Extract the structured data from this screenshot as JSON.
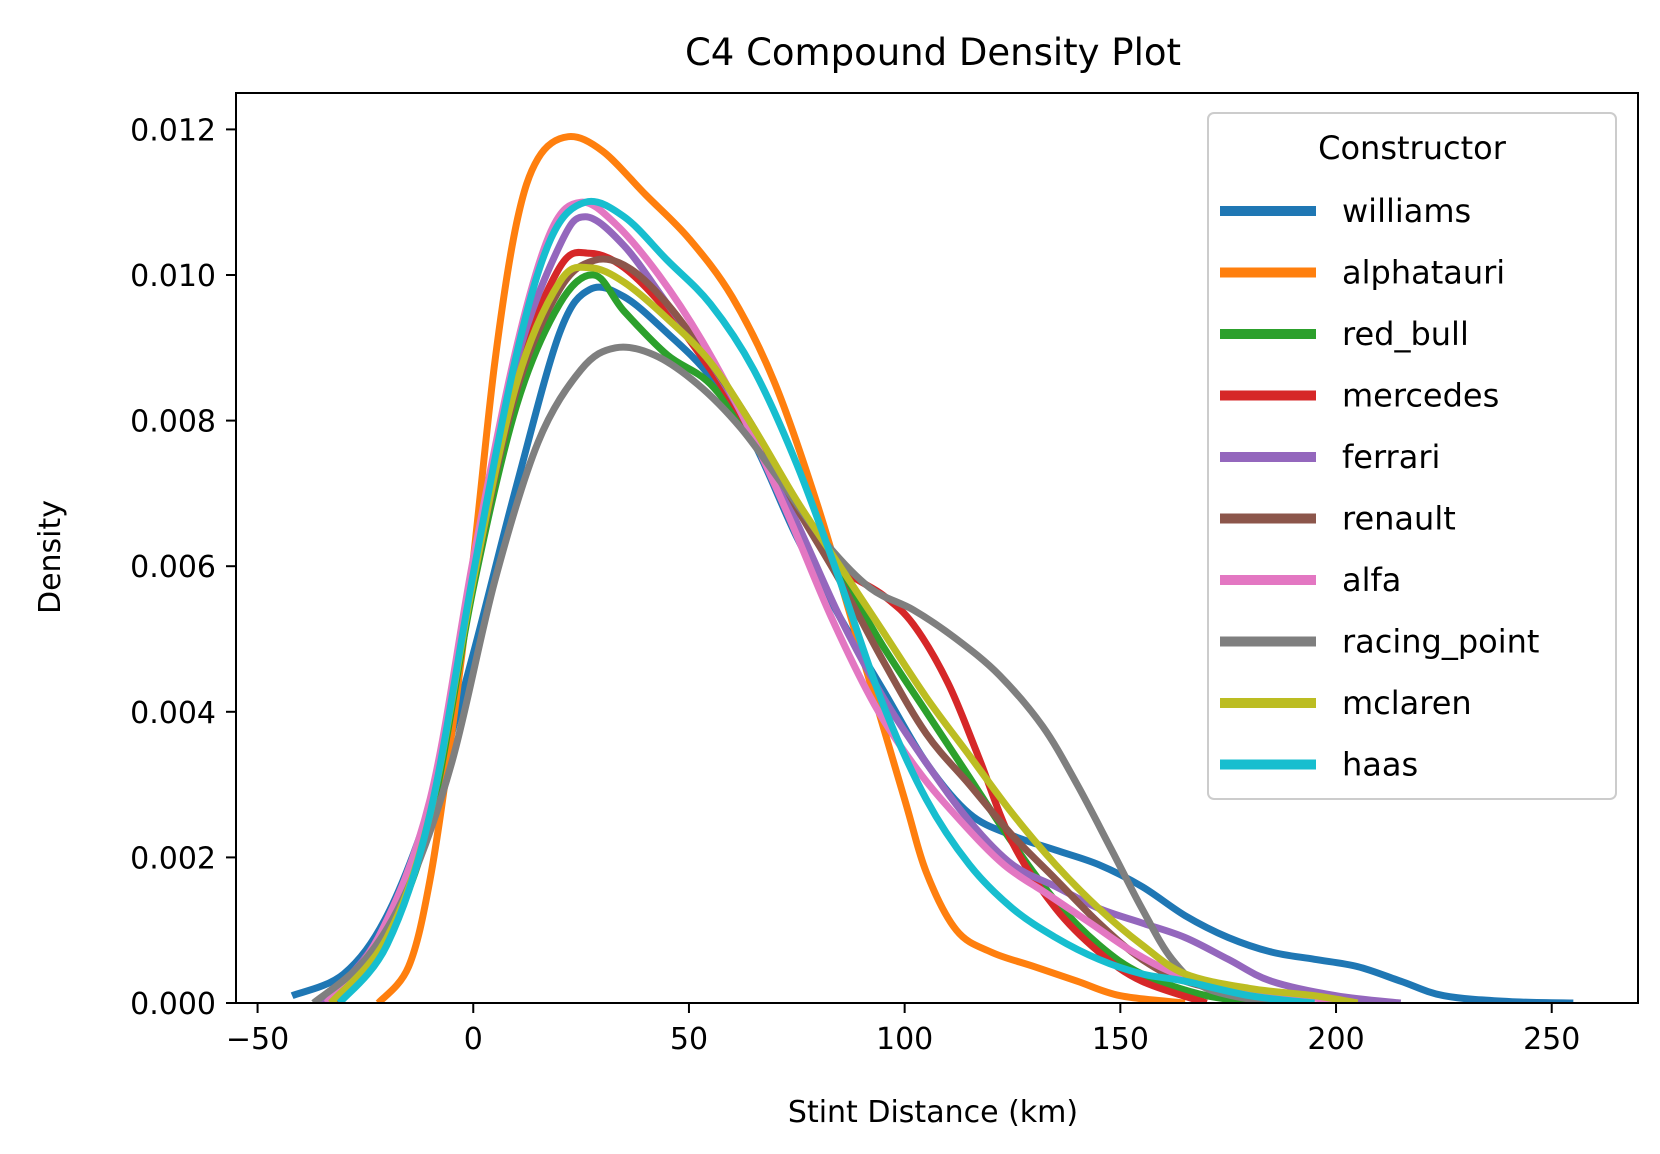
{
  "chart_data": {
    "type": "line",
    "title": "C4 Compound Density Plot",
    "xlabel": "Stint Distance (km)",
    "ylabel": "Density",
    "xlim": [
      -55,
      270
    ],
    "ylim": [
      0,
      0.0125
    ],
    "x_ticks": [
      -50,
      0,
      50,
      100,
      150,
      200,
      250
    ],
    "x_tick_labels": [
      "−50",
      "0",
      "50",
      "100",
      "150",
      "200",
      "250"
    ],
    "y_ticks": [
      0,
      0.002,
      0.004,
      0.006,
      0.008,
      0.01,
      0.012
    ],
    "y_tick_labels": [
      "0.000",
      "0.002",
      "0.004",
      "0.006",
      "0.008",
      "0.010",
      "0.012"
    ],
    "grid": false,
    "legend": {
      "title": "Constructor",
      "placement": "top-right"
    },
    "series": [
      {
        "name": "williams",
        "color": "#1f77b4",
        "points": [
          [
            -42,
            0.0001
          ],
          [
            -30,
            0.0004
          ],
          [
            -20,
            0.0012
          ],
          [
            -10,
            0.0027
          ],
          [
            0,
            0.0048
          ],
          [
            10,
            0.0071
          ],
          [
            20,
            0.0092
          ],
          [
            27,
            0.0098
          ],
          [
            35,
            0.0097
          ],
          [
            45,
            0.0092
          ],
          [
            55,
            0.0086
          ],
          [
            65,
            0.0077
          ],
          [
            75,
            0.0064
          ],
          [
            85,
            0.0053
          ],
          [
            95,
            0.0043
          ],
          [
            105,
            0.0033
          ],
          [
            115,
            0.0026
          ],
          [
            125,
            0.0023
          ],
          [
            135,
            0.0021
          ],
          [
            145,
            0.0019
          ],
          [
            155,
            0.0016
          ],
          [
            165,
            0.0012
          ],
          [
            175,
            0.0009
          ],
          [
            185,
            0.0007
          ],
          [
            195,
            0.0006
          ],
          [
            205,
            0.0005
          ],
          [
            215,
            0.0003
          ],
          [
            225,
            0.0001
          ],
          [
            240,
            2e-05
          ],
          [
            255,
            0.0
          ]
        ]
      },
      {
        "name": "alphatauri",
        "color": "#ff7f0e",
        "points": [
          [
            -22,
            0.0
          ],
          [
            -15,
            0.0005
          ],
          [
            -10,
            0.0017
          ],
          [
            -5,
            0.0037
          ],
          [
            0,
            0.0061
          ],
          [
            5,
            0.0088
          ],
          [
            10,
            0.0107
          ],
          [
            15,
            0.0116
          ],
          [
            22,
            0.0119
          ],
          [
            30,
            0.0117
          ],
          [
            40,
            0.0111
          ],
          [
            50,
            0.0105
          ],
          [
            60,
            0.0097
          ],
          [
            70,
            0.0085
          ],
          [
            80,
            0.0068
          ],
          [
            90,
            0.0048
          ],
          [
            100,
            0.0028
          ],
          [
            105,
            0.0018
          ],
          [
            112,
            0.001
          ],
          [
            120,
            0.0007
          ],
          [
            130,
            0.0005
          ],
          [
            140,
            0.0003
          ],
          [
            150,
            0.0001
          ],
          [
            165,
            0.0
          ]
        ]
      },
      {
        "name": "red_bull",
        "color": "#2ca02c",
        "points": [
          [
            -31,
            0.0
          ],
          [
            -20,
            0.0009
          ],
          [
            -10,
            0.0025
          ],
          [
            0,
            0.0057
          ],
          [
            10,
            0.0082
          ],
          [
            20,
            0.0096
          ],
          [
            28,
            0.01
          ],
          [
            35,
            0.0095
          ],
          [
            45,
            0.0089
          ],
          [
            55,
            0.0085
          ],
          [
            65,
            0.0077
          ],
          [
            75,
            0.0068
          ],
          [
            85,
            0.0059
          ],
          [
            95,
            0.0049
          ],
          [
            105,
            0.004
          ],
          [
            115,
            0.0031
          ],
          [
            125,
            0.0022
          ],
          [
            135,
            0.0014
          ],
          [
            145,
            0.0008
          ],
          [
            155,
            0.0004
          ],
          [
            170,
            0.0001
          ],
          [
            185,
            0.0
          ]
        ]
      },
      {
        "name": "mercedes",
        "color": "#d62728",
        "points": [
          [
            -32,
            0.0
          ],
          [
            -20,
            0.0009
          ],
          [
            -10,
            0.0026
          ],
          [
            0,
            0.0059
          ],
          [
            10,
            0.0086
          ],
          [
            20,
            0.0101
          ],
          [
            27,
            0.0103
          ],
          [
            35,
            0.0101
          ],
          [
            45,
            0.0095
          ],
          [
            55,
            0.0087
          ],
          [
            65,
            0.0078
          ],
          [
            75,
            0.0068
          ],
          [
            85,
            0.006
          ],
          [
            95,
            0.0056
          ],
          [
            102,
            0.0052
          ],
          [
            110,
            0.0044
          ],
          [
            117,
            0.0034
          ],
          [
            125,
            0.0022
          ],
          [
            135,
            0.0013
          ],
          [
            145,
            0.0007
          ],
          [
            155,
            0.0003
          ],
          [
            170,
            0.0
          ]
        ]
      },
      {
        "name": "ferrari",
        "color": "#9467bd",
        "points": [
          [
            -35,
            0.0
          ],
          [
            -22,
            0.0009
          ],
          [
            -10,
            0.0027
          ],
          [
            0,
            0.0059
          ],
          [
            10,
            0.0088
          ],
          [
            20,
            0.0104
          ],
          [
            26,
            0.0108
          ],
          [
            35,
            0.0104
          ],
          [
            45,
            0.0096
          ],
          [
            55,
            0.0088
          ],
          [
            65,
            0.0078
          ],
          [
            75,
            0.0066
          ],
          [
            85,
            0.0053
          ],
          [
            95,
            0.0042
          ],
          [
            105,
            0.0033
          ],
          [
            115,
            0.0025
          ],
          [
            125,
            0.0019
          ],
          [
            135,
            0.0016
          ],
          [
            145,
            0.0013
          ],
          [
            155,
            0.0011
          ],
          [
            165,
            0.0009
          ],
          [
            175,
            0.0006
          ],
          [
            185,
            0.0003
          ],
          [
            200,
            0.0001
          ],
          [
            215,
            0.0
          ]
        ]
      },
      {
        "name": "renault",
        "color": "#8c564b",
        "points": [
          [
            -33,
            0.0
          ],
          [
            -20,
            0.001
          ],
          [
            -10,
            0.0027
          ],
          [
            0,
            0.0058
          ],
          [
            10,
            0.0084
          ],
          [
            20,
            0.0098
          ],
          [
            28,
            0.0102
          ],
          [
            36,
            0.0101
          ],
          [
            45,
            0.0096
          ],
          [
            55,
            0.0088
          ],
          [
            65,
            0.0079
          ],
          [
            75,
            0.0068
          ],
          [
            85,
            0.0058
          ],
          [
            95,
            0.0047
          ],
          [
            105,
            0.0037
          ],
          [
            115,
            0.003
          ],
          [
            125,
            0.0023
          ],
          [
            135,
            0.0017
          ],
          [
            145,
            0.0011
          ],
          [
            155,
            0.0006
          ],
          [
            165,
            0.0003
          ],
          [
            180,
            0.0001
          ],
          [
            195,
            0.0
          ]
        ]
      },
      {
        "name": "alfa",
        "color": "#e377c2",
        "points": [
          [
            -34,
            0.0
          ],
          [
            -22,
            0.0009
          ],
          [
            -10,
            0.0028
          ],
          [
            0,
            0.0061
          ],
          [
            10,
            0.009
          ],
          [
            18,
            0.0106
          ],
          [
            25,
            0.011
          ],
          [
            33,
            0.0107
          ],
          [
            43,
            0.01
          ],
          [
            53,
            0.0091
          ],
          [
            63,
            0.008
          ],
          [
            73,
            0.0067
          ],
          [
            83,
            0.0053
          ],
          [
            93,
            0.0041
          ],
          [
            103,
            0.0032
          ],
          [
            113,
            0.0025
          ],
          [
            123,
            0.0019
          ],
          [
            133,
            0.0015
          ],
          [
            143,
            0.0011
          ],
          [
            153,
            0.0007
          ],
          [
            163,
            0.0004
          ],
          [
            175,
            0.0002
          ],
          [
            190,
            0.0001
          ],
          [
            205,
            0.0
          ]
        ]
      },
      {
        "name": "racing_point",
        "color": "#7f7f7f",
        "points": [
          [
            -37,
            0.0
          ],
          [
            -25,
            0.0006
          ],
          [
            -15,
            0.0016
          ],
          [
            -5,
            0.0033
          ],
          [
            5,
            0.0058
          ],
          [
            15,
            0.0077
          ],
          [
            25,
            0.0087
          ],
          [
            33,
            0.009
          ],
          [
            42,
            0.0089
          ],
          [
            52,
            0.0085
          ],
          [
            62,
            0.0079
          ],
          [
            72,
            0.0071
          ],
          [
            82,
            0.0063
          ],
          [
            92,
            0.0057
          ],
          [
            102,
            0.0054
          ],
          [
            112,
            0.005
          ],
          [
            122,
            0.0045
          ],
          [
            132,
            0.0038
          ],
          [
            140,
            0.003
          ],
          [
            148,
            0.0021
          ],
          [
            155,
            0.0013
          ],
          [
            162,
            0.0006
          ],
          [
            170,
            0.0002
          ],
          [
            185,
            0.0
          ]
        ]
      },
      {
        "name": "mclaren",
        "color": "#bcbd22",
        "points": [
          [
            -33,
            0.0
          ],
          [
            -20,
            0.0009
          ],
          [
            -10,
            0.0026
          ],
          [
            0,
            0.0058
          ],
          [
            10,
            0.0085
          ],
          [
            20,
            0.0099
          ],
          [
            27,
            0.0101
          ],
          [
            35,
            0.0099
          ],
          [
            45,
            0.0094
          ],
          [
            55,
            0.0088
          ],
          [
            65,
            0.0079
          ],
          [
            75,
            0.0069
          ],
          [
            85,
            0.006
          ],
          [
            95,
            0.0051
          ],
          [
            105,
            0.0042
          ],
          [
            115,
            0.0034
          ],
          [
            125,
            0.0026
          ],
          [
            135,
            0.0019
          ],
          [
            145,
            0.0013
          ],
          [
            155,
            0.0008
          ],
          [
            165,
            0.0004
          ],
          [
            180,
            0.0002
          ],
          [
            195,
            0.0001
          ],
          [
            205,
            0.0
          ]
        ]
      },
      {
        "name": "haas",
        "color": "#17becf",
        "points": [
          [
            -31,
            0.0
          ],
          [
            -20,
            0.0008
          ],
          [
            -10,
            0.0026
          ],
          [
            0,
            0.0059
          ],
          [
            10,
            0.0089
          ],
          [
            18,
            0.0105
          ],
          [
            26,
            0.011
          ],
          [
            35,
            0.0108
          ],
          [
            45,
            0.0102
          ],
          [
            55,
            0.0096
          ],
          [
            65,
            0.0087
          ],
          [
            75,
            0.0074
          ],
          [
            85,
            0.0058
          ],
          [
            95,
            0.0041
          ],
          [
            105,
            0.0028
          ],
          [
            115,
            0.0019
          ],
          [
            125,
            0.0013
          ],
          [
            135,
            0.0009
          ],
          [
            145,
            0.0006
          ],
          [
            155,
            0.0004
          ],
          [
            165,
            0.0003
          ],
          [
            180,
            0.0001
          ],
          [
            195,
            0.0
          ]
        ]
      }
    ]
  }
}
